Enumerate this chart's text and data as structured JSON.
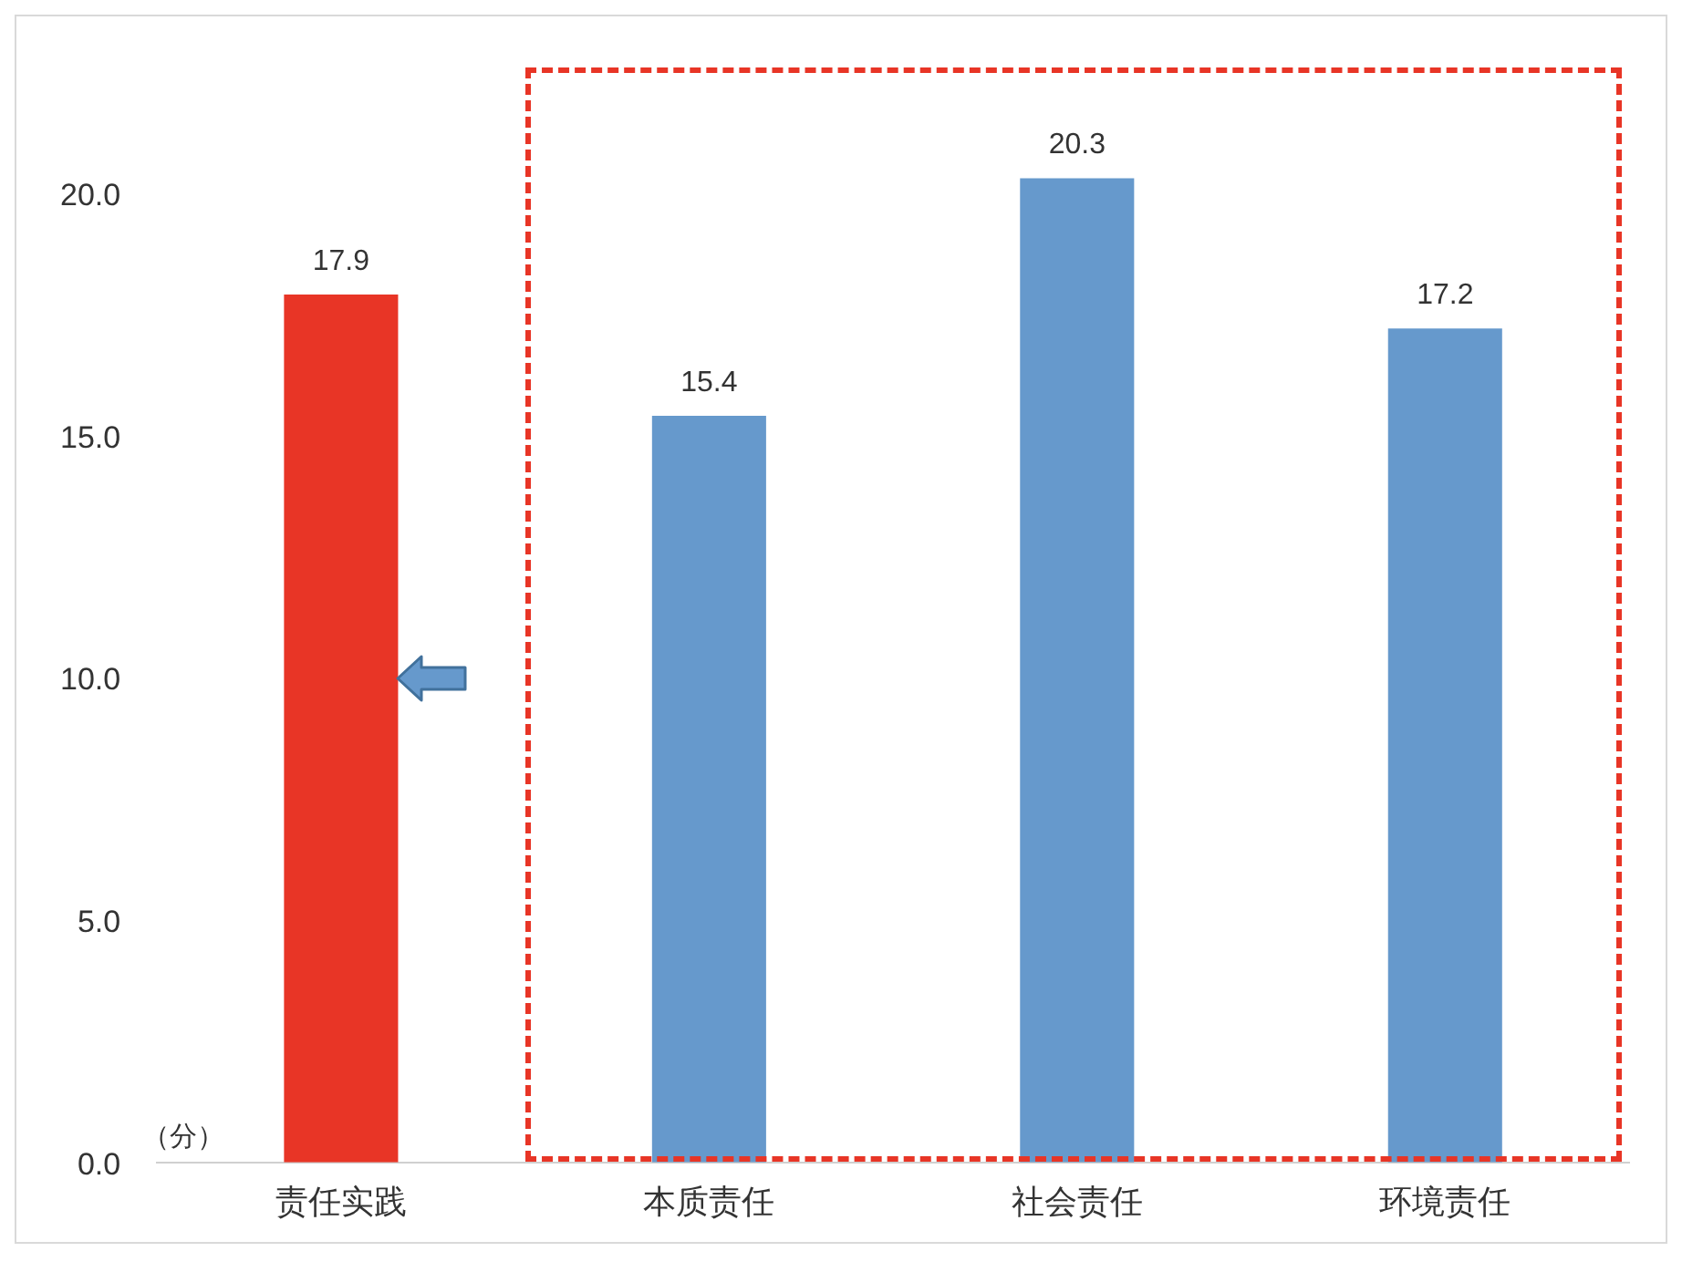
{
  "chart_data": {
    "type": "bar",
    "categories": [
      "责任实践",
      "本质责任",
      "社会责任",
      "环境责任"
    ],
    "values": [
      17.9,
      15.4,
      20.3,
      17.2
    ],
    "colors": [
      "#e83526",
      "#6699cc",
      "#6699cc",
      "#6699cc"
    ],
    "ylabel": "（分）",
    "ylim": [
      0,
      22.5
    ],
    "yticks": [
      {
        "value": 0,
        "label": "0.0"
      },
      {
        "value": 5,
        "label": "5.0"
      },
      {
        "value": 10,
        "label": "10.0"
      },
      {
        "value": 15,
        "label": "15.0"
      },
      {
        "value": 20,
        "label": "20.0"
      }
    ],
    "grid": false,
    "data_labels": true,
    "legend": false
  }
}
